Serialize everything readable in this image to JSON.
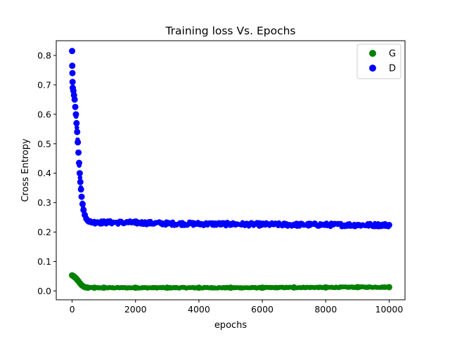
{
  "chart_data": {
    "type": "scatter",
    "title": "Training loss Vs. Epochs",
    "xlabel": "epochs",
    "ylabel": "Cross Entropy",
    "xlim": [
      -500,
      10500
    ],
    "ylim": [
      -0.03,
      0.85
    ],
    "xticks": [
      0,
      2000,
      4000,
      6000,
      8000,
      10000
    ],
    "xtick_labels": [
      "0",
      "2000",
      "4000",
      "6000",
      "8000",
      "10000"
    ],
    "yticks": [
      0.0,
      0.1,
      0.2,
      0.3,
      0.4,
      0.5,
      0.6,
      0.7,
      0.8
    ],
    "ytick_labels": [
      "0.0",
      "0.1",
      "0.2",
      "0.3",
      "0.4",
      "0.5",
      "0.6",
      "0.7",
      "0.8"
    ],
    "grid": false,
    "legend_position": "top-right",
    "series": [
      {
        "name": "G",
        "color": "#008000",
        "points": [
          [
            0,
            0.053
          ],
          [
            20,
            0.052
          ],
          [
            40,
            0.05
          ],
          [
            60,
            0.049
          ],
          [
            80,
            0.047
          ],
          [
            100,
            0.045
          ],
          [
            130,
            0.042
          ],
          [
            160,
            0.038
          ],
          [
            200,
            0.033
          ],
          [
            250,
            0.026
          ],
          [
            300,
            0.02
          ],
          [
            350,
            0.016
          ],
          [
            400,
            0.013
          ],
          [
            450,
            0.012
          ],
          [
            500,
            0.011
          ],
          [
            700,
            0.011
          ],
          [
            1000,
            0.011
          ],
          [
            2000,
            0.011
          ],
          [
            3000,
            0.011
          ],
          [
            4000,
            0.011
          ],
          [
            5000,
            0.011
          ],
          [
            6000,
            0.011
          ],
          [
            7000,
            0.012
          ],
          [
            8000,
            0.012
          ],
          [
            9000,
            0.013
          ],
          [
            10000,
            0.013
          ]
        ]
      },
      {
        "name": "D",
        "color": "#0000ff",
        "points": [
          [
            0,
            0.815
          ],
          [
            5,
            0.765
          ],
          [
            10,
            0.74
          ],
          [
            15,
            0.71
          ],
          [
            20,
            0.69
          ],
          [
            40,
            0.68
          ],
          [
            60,
            0.665
          ],
          [
            80,
            0.65
          ],
          [
            100,
            0.625
          ],
          [
            120,
            0.6
          ],
          [
            140,
            0.57
          ],
          [
            160,
            0.54
          ],
          [
            180,
            0.505
          ],
          [
            200,
            0.47
          ],
          [
            220,
            0.435
          ],
          [
            240,
            0.4
          ],
          [
            260,
            0.37
          ],
          [
            280,
            0.345
          ],
          [
            300,
            0.32
          ],
          [
            330,
            0.295
          ],
          [
            360,
            0.275
          ],
          [
            400,
            0.258
          ],
          [
            450,
            0.245
          ],
          [
            500,
            0.238
          ],
          [
            600,
            0.234
          ],
          [
            800,
            0.233
          ],
          [
            1000,
            0.233
          ],
          [
            2000,
            0.232
          ],
          [
            3000,
            0.229
          ],
          [
            4000,
            0.228
          ],
          [
            5000,
            0.227
          ],
          [
            6000,
            0.226
          ],
          [
            7000,
            0.225
          ],
          [
            8000,
            0.225
          ],
          [
            9000,
            0.224
          ],
          [
            10000,
            0.224
          ]
        ]
      }
    ]
  }
}
